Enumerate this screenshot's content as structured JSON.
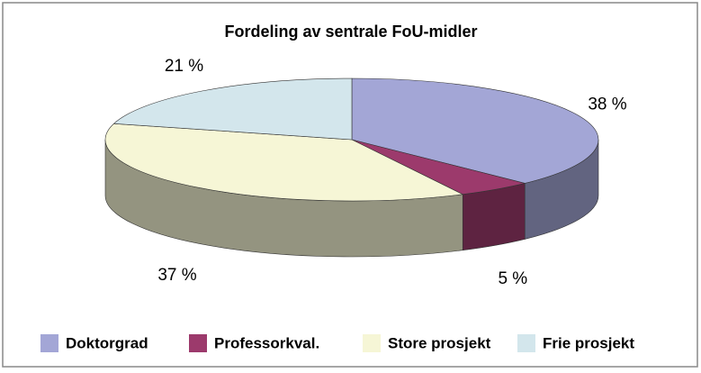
{
  "chart_data": {
    "type": "pie3d",
    "title": "Fordeling av sentrale FoU-midler",
    "categories": [
      "Doktorgrad",
      "Professorkval.",
      "Store prosjekt",
      "Frie prosjekt"
    ],
    "values": [
      38,
      5,
      37,
      21
    ],
    "value_labels": [
      "38 %",
      "5 %",
      "37 %",
      "21 %"
    ],
    "colors": [
      "#a3a6d6",
      "#9c3a6c",
      "#f6f6d6",
      "#d3e6ec"
    ],
    "legend": "bottom"
  }
}
